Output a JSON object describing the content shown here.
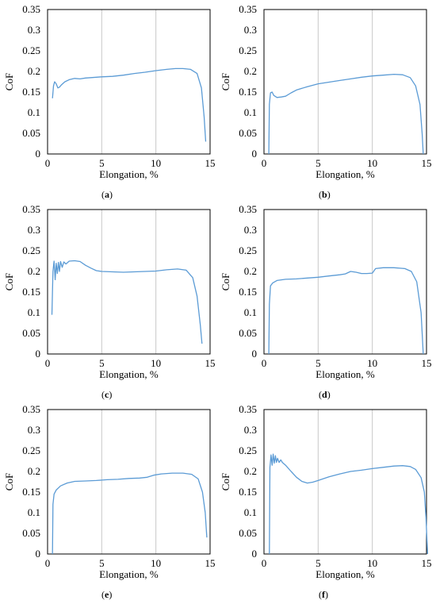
{
  "figure": {
    "panel_labels": [
      {
        "open": "(",
        "letter": "a",
        "close": ")"
      },
      {
        "open": "(",
        "letter": "b",
        "close": ")"
      },
      {
        "open": "(",
        "letter": "c",
        "close": ")"
      },
      {
        "open": "(",
        "letter": "d",
        "close": ")"
      },
      {
        "open": "(",
        "letter": "e",
        "close": ")"
      },
      {
        "open": "(",
        "letter": "f",
        "close": ")"
      }
    ]
  },
  "chart_data": [
    {
      "type": "line",
      "panel": "a",
      "xlabel": "Elongation, %",
      "ylabel": "CoF",
      "xlim": [
        0,
        15
      ],
      "ylim": [
        0,
        0.35
      ],
      "xticks": [
        0,
        5,
        10,
        15
      ],
      "xtick_labels": [
        "0",
        "5",
        "10",
        "15"
      ],
      "yticks": [
        0,
        0.05,
        0.1,
        0.15,
        0.2,
        0.25,
        0.3,
        0.35
      ],
      "ytick_labels": [
        "0",
        "0.05",
        "0.1",
        "0.15",
        "0.2",
        "0.25",
        "0.3",
        "0.35"
      ],
      "grid": "vertical",
      "line_color": "#5b9bd5",
      "x": [
        0.45,
        0.55,
        0.65,
        0.8,
        0.95,
        1.1,
        1.3,
        1.6,
        2.0,
        2.5,
        3.0,
        3.5,
        4.0,
        4.5,
        5.0,
        6.0,
        7.0,
        8.0,
        9.0,
        10.0,
        11.0,
        11.8,
        12.5,
        13.2,
        13.8,
        14.2,
        14.45,
        14.6
      ],
      "y": [
        0.135,
        0.165,
        0.175,
        0.17,
        0.16,
        0.162,
        0.168,
        0.175,
        0.18,
        0.183,
        0.182,
        0.184,
        0.185,
        0.186,
        0.187,
        0.188,
        0.191,
        0.195,
        0.198,
        0.202,
        0.205,
        0.207,
        0.207,
        0.205,
        0.195,
        0.16,
        0.09,
        0.03
      ]
    },
    {
      "type": "line",
      "panel": "b",
      "xlabel": "Elongation, %",
      "ylabel": "CoF",
      "xlim": [
        0,
        15
      ],
      "ylim": [
        0,
        0.35
      ],
      "xticks": [
        0,
        5,
        10,
        15
      ],
      "xtick_labels": [
        "0",
        "5",
        "10",
        "15"
      ],
      "yticks": [
        0,
        0.05,
        0.1,
        0.15,
        0.2,
        0.25,
        0.3,
        0.35
      ],
      "ytick_labels": [
        "0",
        "0.05",
        "0.1",
        "0.15",
        "0.2",
        "0.25",
        "0.3",
        "0.35"
      ],
      "grid": "vertical",
      "line_color": "#5b9bd5",
      "x": [
        0.45,
        0.5,
        0.6,
        0.75,
        0.9,
        1.2,
        1.6,
        2.0,
        2.5,
        3.0,
        4.0,
        5.0,
        6.0,
        7.0,
        8.0,
        9.0,
        10.0,
        11.0,
        12.0,
        12.8,
        13.5,
        14.0,
        14.4,
        14.6,
        14.7
      ],
      "y": [
        0.0,
        0.12,
        0.148,
        0.15,
        0.142,
        0.137,
        0.138,
        0.14,
        0.148,
        0.155,
        0.163,
        0.17,
        0.174,
        0.178,
        0.182,
        0.186,
        0.189,
        0.191,
        0.193,
        0.192,
        0.185,
        0.165,
        0.12,
        0.05,
        0.0
      ]
    },
    {
      "type": "line",
      "panel": "c",
      "xlabel": "Elongation, %",
      "ylabel": "CoF",
      "xlim": [
        0,
        15
      ],
      "ylim": [
        0,
        0.35
      ],
      "xticks": [
        0,
        5,
        10,
        15
      ],
      "xtick_labels": [
        "0",
        "5",
        "10",
        "15"
      ],
      "yticks": [
        0,
        0.05,
        0.1,
        0.15,
        0.2,
        0.25,
        0.3,
        0.35
      ],
      "ytick_labels": [
        "0",
        "0.05",
        "0.1",
        "0.15",
        "0.2",
        "0.25",
        "0.3",
        "0.35"
      ],
      "grid": "vertical",
      "line_color": "#5b9bd5",
      "x": [
        0.4,
        0.5,
        0.6,
        0.7,
        0.8,
        0.9,
        1.0,
        1.1,
        1.2,
        1.35,
        1.5,
        1.7,
        2.0,
        2.5,
        3.0,
        3.5,
        4.0,
        4.5,
        5.0,
        6.0,
        7.0,
        8.0,
        9.0,
        10.0,
        11.0,
        12.0,
        12.8,
        13.4,
        13.8,
        14.1,
        14.25
      ],
      "y": [
        0.095,
        0.2,
        0.225,
        0.18,
        0.22,
        0.195,
        0.222,
        0.2,
        0.224,
        0.21,
        0.223,
        0.218,
        0.225,
        0.226,
        0.224,
        0.215,
        0.208,
        0.202,
        0.2,
        0.199,
        0.198,
        0.199,
        0.2,
        0.201,
        0.204,
        0.206,
        0.203,
        0.185,
        0.14,
        0.07,
        0.025
      ]
    },
    {
      "type": "line",
      "panel": "d",
      "xlabel": "Elongation, %",
      "ylabel": "CoF",
      "xlim": [
        0,
        15
      ],
      "ylim": [
        0,
        0.35
      ],
      "xticks": [
        0,
        5,
        10,
        15
      ],
      "xtick_labels": [
        "0",
        "5",
        "10",
        "15"
      ],
      "yticks": [
        0,
        0.05,
        0.1,
        0.15,
        0.2,
        0.25,
        0.3,
        0.35
      ],
      "ytick_labels": [
        "0",
        "0.05",
        "0.1",
        "0.15",
        "0.2",
        "0.25",
        "0.3",
        "0.35"
      ],
      "grid": "vertical",
      "line_color": "#5b9bd5",
      "x": [
        0.45,
        0.5,
        0.6,
        0.8,
        1.2,
        2.0,
        3.0,
        4.0,
        5.0,
        6.0,
        7.0,
        7.5,
        8.0,
        8.5,
        9.0,
        9.5,
        10.0,
        10.3,
        11.0,
        12.0,
        13.0,
        13.6,
        14.1,
        14.5,
        14.7
      ],
      "y": [
        0.0,
        0.12,
        0.165,
        0.172,
        0.178,
        0.181,
        0.182,
        0.184,
        0.186,
        0.189,
        0.192,
        0.194,
        0.2,
        0.198,
        0.195,
        0.195,
        0.196,
        0.207,
        0.209,
        0.209,
        0.207,
        0.2,
        0.175,
        0.1,
        0.0
      ]
    },
    {
      "type": "line",
      "panel": "e",
      "xlabel": "Elongation, %",
      "ylabel": "CoF",
      "xlim": [
        0,
        15
      ],
      "ylim": [
        0,
        0.35
      ],
      "xticks": [
        0,
        5,
        10,
        15
      ],
      "xtick_labels": [
        "0",
        "5",
        "10",
        "15"
      ],
      "yticks": [
        0,
        0.05,
        0.1,
        0.15,
        0.2,
        0.25,
        0.3,
        0.35
      ],
      "ytick_labels": [
        "0",
        "0.05",
        "0.1",
        "0.15",
        "0.2",
        "0.25",
        "0.3",
        "0.35"
      ],
      "grid": "vertical",
      "line_color": "#5b9bd5",
      "x": [
        0.45,
        0.5,
        0.6,
        0.8,
        1.2,
        1.8,
        2.5,
        3.5,
        4.5,
        5.5,
        6.5,
        7.5,
        8.5,
        9.2,
        9.8,
        10.5,
        11.5,
        12.5,
        13.3,
        13.9,
        14.3,
        14.55,
        14.7
      ],
      "y": [
        0.0,
        0.12,
        0.145,
        0.155,
        0.165,
        0.172,
        0.176,
        0.177,
        0.178,
        0.18,
        0.181,
        0.183,
        0.184,
        0.186,
        0.191,
        0.194,
        0.196,
        0.196,
        0.193,
        0.182,
        0.15,
        0.1,
        0.04
      ]
    },
    {
      "type": "line",
      "panel": "f",
      "xlabel": "Elongation, %",
      "ylabel": "CoF",
      "xlim": [
        0,
        15
      ],
      "ylim": [
        0,
        0.35
      ],
      "xticks": [
        0,
        5,
        10,
        15
      ],
      "xtick_labels": [
        "0",
        "5",
        "10",
        "15"
      ],
      "yticks": [
        0,
        0.05,
        0.1,
        0.15,
        0.2,
        0.25,
        0.3,
        0.35
      ],
      "ytick_labels": [
        "0",
        "0.05",
        "0.1",
        "0.15",
        "0.2",
        "0.25",
        "0.3",
        "0.35"
      ],
      "grid": "vertical",
      "line_color": "#5b9bd5",
      "x": [
        0.5,
        0.55,
        0.65,
        0.75,
        0.85,
        0.95,
        1.05,
        1.15,
        1.25,
        1.4,
        1.55,
        1.7,
        2.0,
        2.5,
        3.0,
        3.5,
        4.0,
        4.5,
        5.0,
        6.0,
        7.0,
        8.0,
        9.0,
        10.0,
        11.0,
        12.0,
        12.8,
        13.5,
        14.0,
        14.5,
        14.8,
        14.95,
        15.05,
        15.1
      ],
      "y": [
        0.0,
        0.21,
        0.24,
        0.215,
        0.242,
        0.22,
        0.238,
        0.222,
        0.232,
        0.222,
        0.228,
        0.222,
        0.215,
        0.2,
        0.186,
        0.176,
        0.172,
        0.174,
        0.178,
        0.187,
        0.194,
        0.2,
        0.203,
        0.207,
        0.21,
        0.213,
        0.214,
        0.212,
        0.205,
        0.185,
        0.15,
        0.09,
        0.03,
        0.0
      ]
    }
  ]
}
